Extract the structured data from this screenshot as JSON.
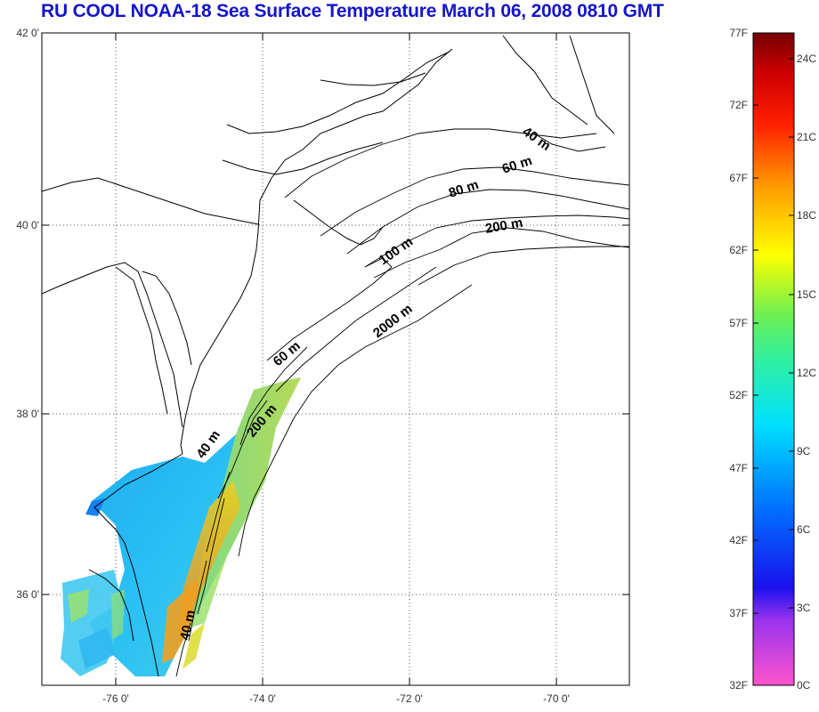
{
  "title": "RU COOL  NOAA-18 Sea Surface Temperature March 06, 2008 0810 GMT",
  "map": {
    "lat_range": [
      35,
      42
    ],
    "lon_range": [
      -77,
      -69
    ],
    "lat_ticks": [
      "42 0'",
      "40 0'",
      "38 0'",
      "36 0'"
    ],
    "lon_ticks": [
      "-76 0'",
      "-74 0'",
      "-72 0'",
      "-70 0'"
    ],
    "grid": "dotted",
    "contour_labels": [
      "40 m",
      "60 m",
      "80 m",
      "200 m",
      "100 m",
      "2000 m",
      "60 m",
      "200 m",
      "40 m",
      "40 m"
    ]
  },
  "colorbar": {
    "fahrenheit_labels": [
      "77F",
      "72F",
      "67F",
      "62F",
      "57F",
      "52F",
      "47F",
      "42F",
      "37F",
      "32F"
    ],
    "celsius_labels": [
      "24C",
      "21C",
      "18C",
      "15C",
      "12C",
      "9C",
      "6C",
      "3C",
      "0C"
    ],
    "colors": [
      "#ff55cc",
      "#9933ee",
      "#1010dd",
      "#0080ff",
      "#00e8ff",
      "#33ee66",
      "#eeee00",
      "#ff8800",
      "#ff0000",
      "#770000"
    ]
  }
}
